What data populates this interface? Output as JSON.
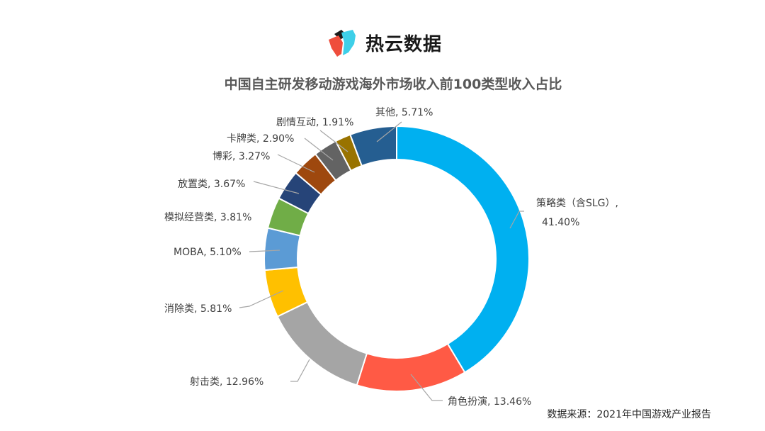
{
  "logo": {
    "text": "热云数据",
    "icon": "reyun-logo-icon"
  },
  "chart_data": {
    "type": "pie",
    "variant": "donut",
    "title": "中国自主研发移动游戏海外市场收入前100类型收入占比",
    "unit": "%",
    "categories": [
      "策略类（含SLG）",
      "角色扮演",
      "射击类",
      "消除类",
      "MOBA",
      "模拟经营类",
      "放置类",
      "博彩",
      "卡牌类",
      "剧情互动",
      "其他"
    ],
    "values": [
      41.4,
      13.46,
      12.96,
      5.81,
      5.1,
      3.81,
      3.67,
      3.27,
      2.9,
      1.91,
      5.71
    ],
    "colors": [
      "#00b0f0",
      "#ff5a45",
      "#a5a5a5",
      "#ffc000",
      "#5b9bd5",
      "#70ad47",
      "#264478",
      "#9e480e",
      "#636363",
      "#997300",
      "#255e91"
    ],
    "labels": [
      "策略类（含SLG）,|41.40%",
      "角色扮演, 13.46%",
      "射击类, 12.96%",
      "消除类, 5.81%",
      "MOBA, 5.10%",
      "模拟经营类, 3.81%",
      "放置类, 3.67%",
      "博彩, 3.27%",
      "卡牌类, 2.90%",
      "剧情互动, 1.91%",
      "其他, 5.71%"
    ],
    "start_angle_deg": 0,
    "direction": "clockwise",
    "legend": "none (data labels with leader lines)"
  },
  "source": "数据来源：2021年中国游戏产业报告"
}
